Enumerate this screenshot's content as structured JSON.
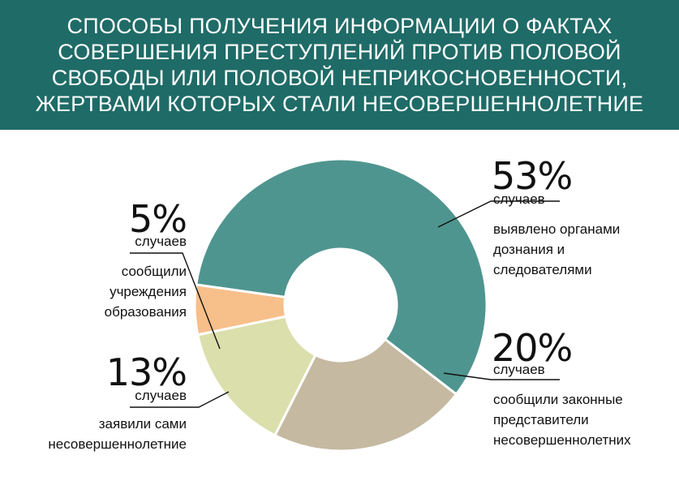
{
  "header": {
    "title": "СПОСОБЫ ПОЛУЧЕНИЯ ИНФОРМАЦИИ О ФАКТАХ СОВЕРШЕНИЯ ПРЕСТУПЛЕНИЙ ПРОТИВ ПОЛОВОЙ СВОБОДЫ ИЛИ ПОЛОВОЙ НЕПРИКОСНОВЕННОСТИ, ЖЕРТВАМИ КОТОРЫХ СТАЛИ НЕСОВЕРШЕННОЛЕТНИЕ",
    "background": "#1f6b67"
  },
  "chart_data": {
    "type": "pie",
    "title": "СПОСОБЫ ПОЛУЧЕНИЯ ИНФОРМАЦИИ О ФАКТАХ СОВЕРШЕНИЯ ПРЕСТУПЛЕНИЙ ПРОТИВ ПОЛОВОЙ СВОБОДЫ ИЛИ ПОЛОВОЙ НЕПРИКОСНОВЕННОСТИ, ЖЕРТВАМИ КОТОРЫХ СТАЛИ НЕСОВЕРШЕННОЛЕТНИЕ",
    "donut": true,
    "unit": "случаев",
    "slices": [
      {
        "percent_label": "53%",
        "value": 53,
        "unit": "случаев",
        "label": "выявлено органами дознания и следователями",
        "color": "#4f958f"
      },
      {
        "percent_label": "20%",
        "value": 20,
        "unit": "случаев",
        "label": "сообщили законные представители несовершеннолетних",
        "color": "#c5b9a1"
      },
      {
        "percent_label": "13%",
        "value": 13,
        "unit": "случаев",
        "label": "заявили сами несовершеннолетние",
        "color": "#dbdfac"
      },
      {
        "percent_label": "5%",
        "value": 5,
        "unit": "случаев",
        "label": "сообщили учреждения образования",
        "color": "#f7bf8a"
      }
    ]
  }
}
